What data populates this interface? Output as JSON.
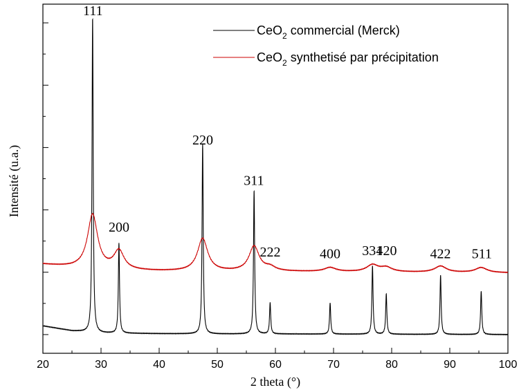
{
  "chart_data": {
    "type": "line",
    "title": "",
    "xlabel": "2 theta (°)",
    "ylabel": "Intensité (u.a.)",
    "xlim": [
      20,
      100
    ],
    "xticks": [
      20,
      30,
      40,
      50,
      60,
      70,
      80,
      90,
      100
    ],
    "ylim": [
      -0.6,
      10.6
    ],
    "y_tick_labels_shown": false,
    "grid": false,
    "legend": {
      "placement": "top-right",
      "entries": [
        {
          "prefix": "CeO",
          "sub": "2",
          "suffix": " commercial (Merck)",
          "color": "#000000"
        },
        {
          "prefix": "CeO",
          "sub": "2",
          "suffix": " synthetisé par précipitation",
          "color": "#cc0000"
        }
      ]
    },
    "peak_labels": [
      {
        "text": "111",
        "x": 28.6,
        "y": 10.25
      },
      {
        "text": "200",
        "x": 33.1,
        "y": 3.3
      },
      {
        "text": "220",
        "x": 47.5,
        "y": 6.1
      },
      {
        "text": "311",
        "x": 56.3,
        "y": 4.8
      },
      {
        "text": "222",
        "x": 59.1,
        "y": 2.5
      },
      {
        "text": "400",
        "x": 69.4,
        "y": 2.45
      },
      {
        "text": "331",
        "x": 76.7,
        "y": 2.55
      },
      {
        "text": "420",
        "x": 79.1,
        "y": 2.55
      },
      {
        "text": "422",
        "x": 88.4,
        "y": 2.45
      },
      {
        "text": "511",
        "x": 95.5,
        "y": 2.45
      }
    ],
    "series": [
      {
        "name": "CeO2 commercial (Merck)",
        "color": "#000000",
        "baseline": [
          [
            20,
            0.28
          ],
          [
            25,
            0.12
          ],
          [
            30,
            0.05
          ],
          [
            40,
            0.03
          ],
          [
            50,
            0.02
          ],
          [
            60,
            0.02
          ],
          [
            80,
            0.01
          ],
          [
            100,
            0.0
          ]
        ],
        "peaks": [
          {
            "x": 28.55,
            "h": 10.1,
            "w": 0.12
          },
          {
            "x": 33.08,
            "h": 2.9,
            "w": 0.12
          },
          {
            "x": 47.48,
            "h": 6.1,
            "w": 0.12
          },
          {
            "x": 56.33,
            "h": 4.6,
            "w": 0.12
          },
          {
            "x": 59.09,
            "h": 1.0,
            "w": 0.12
          },
          {
            "x": 69.41,
            "h": 1.0,
            "w": 0.12
          },
          {
            "x": 76.7,
            "h": 2.2,
            "w": 0.12
          },
          {
            "x": 79.07,
            "h": 1.3,
            "w": 0.12
          },
          {
            "x": 88.41,
            "h": 1.9,
            "w": 0.12
          },
          {
            "x": 95.4,
            "h": 1.4,
            "w": 0.12
          }
        ]
      },
      {
        "name": "CeO2 synthetisé par précipitation",
        "color": "#cc0000",
        "baseline": [
          [
            20,
            2.25
          ],
          [
            25,
            2.15
          ],
          [
            30,
            2.07
          ],
          [
            40,
            2.03
          ],
          [
            50,
            2.02
          ],
          [
            60,
            2.02
          ],
          [
            80,
            2.0
          ],
          [
            100,
            1.98
          ]
        ],
        "peaks": [
          {
            "x": 28.55,
            "h": 1.75,
            "w": 1.05
          },
          {
            "x": 33.08,
            "h": 0.6,
            "w": 1.05
          },
          {
            "x": 47.48,
            "h": 1.05,
            "w": 1.05
          },
          {
            "x": 56.33,
            "h": 0.8,
            "w": 1.05
          },
          {
            "x": 59.09,
            "h": 0.12,
            "w": 1.05
          },
          {
            "x": 69.41,
            "h": 0.13,
            "w": 1.2
          },
          {
            "x": 76.7,
            "h": 0.22,
            "w": 1.2
          },
          {
            "x": 79.07,
            "h": 0.14,
            "w": 1.2
          },
          {
            "x": 88.41,
            "h": 0.2,
            "w": 1.2
          },
          {
            "x": 95.4,
            "h": 0.16,
            "w": 1.2
          }
        ]
      }
    ]
  }
}
